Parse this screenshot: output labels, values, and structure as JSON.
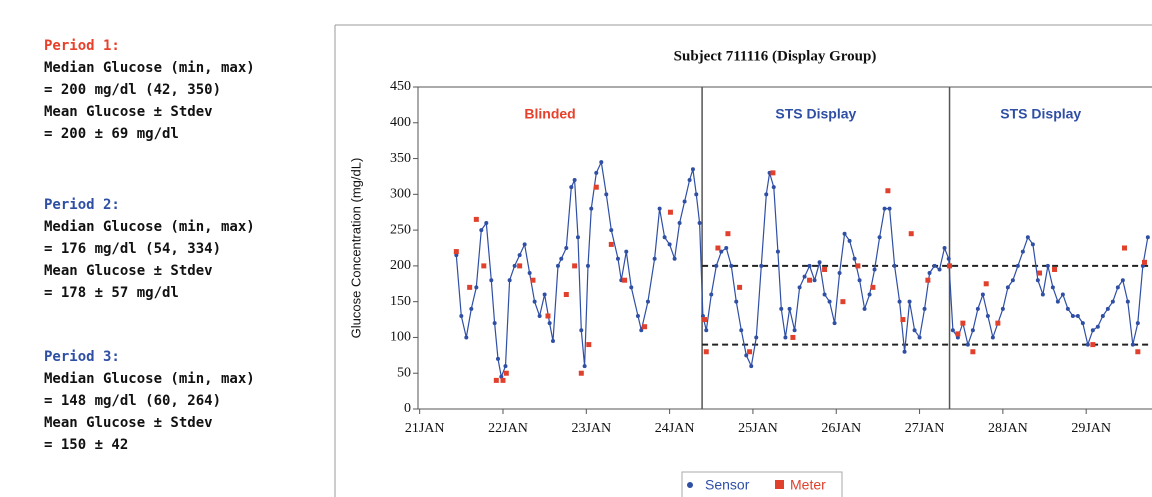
{
  "summary": [
    {
      "label": "Period 1:",
      "color": "#e8402a",
      "lines": [
        "Median Glucose (min, max)",
        "= 200 mg/dl (42, 350)",
        "Mean Glucose ± Stdev",
        "= 200 ± 69 mg/dl"
      ]
    },
    {
      "label": "Period 2:",
      "color": "#2f4fa5",
      "lines": [
        "Median Glucose (min, max)",
        "= 176 mg/dl (54, 334)",
        "Mean Glucose ± Stdev",
        "= 178 ± 57 mg/dl"
      ]
    },
    {
      "label": "Period 3:",
      "color": "#2f4fa5",
      "lines": [
        "Median Glucose (min, max)",
        "= 148 mg/dl (60, 264)",
        "Mean Glucose ± Stdev",
        "= 150 ± 42"
      ]
    }
  ],
  "chart_data": {
    "type": "scatter",
    "title": "Subject 711116 (Display Group)",
    "y_label": "Glucose Concentration (mg/dL)",
    "xlim": [
      -0.02,
      8.79
    ],
    "ylim": [
      0,
      450
    ],
    "xticks": [
      {
        "value": 0,
        "label": "21JAN"
      },
      {
        "value": 1,
        "label": "22JAN"
      },
      {
        "value": 2,
        "label": "23JAN"
      },
      {
        "value": 3,
        "label": "24JAN"
      },
      {
        "value": 4,
        "label": "25JAN"
      },
      {
        "value": 5,
        "label": "26JAN"
      },
      {
        "value": 6,
        "label": "27JAN"
      },
      {
        "value": 7,
        "label": "28JAN"
      },
      {
        "value": 8,
        "label": "29JAN"
      }
    ],
    "yticks": [
      0,
      50,
      100,
      150,
      200,
      250,
      300,
      350,
      400,
      450
    ],
    "period_boundaries": [
      3.39,
      6.36
    ],
    "regions": [
      {
        "label": "Blinded",
        "color": "#e8402a"
      },
      {
        "label": "STS Display",
        "color": "#2f4fa5"
      },
      {
        "label": "STS Display",
        "color": "#2f4fa5"
      }
    ],
    "reference_lines": [
      200,
      90
    ],
    "series": [
      {
        "name": "Sensor",
        "color": "#2f4fa5",
        "x": [
          0.44,
          0.5,
          0.56,
          0.62,
          0.68,
          0.74,
          0.8,
          0.86,
          0.9,
          0.94,
          0.98,
          1.03,
          1.08,
          1.14,
          1.2,
          1.26,
          1.32,
          1.38,
          1.44,
          1.5,
          1.56,
          1.6,
          1.66,
          1.7,
          1.76,
          1.82,
          1.86,
          1.9,
          1.94,
          1.98,
          2.02,
          2.06,
          2.12,
          2.18,
          2.24,
          2.3,
          2.38,
          2.42,
          2.48,
          2.54,
          2.62,
          2.66,
          2.74,
          2.82,
          2.88,
          2.94,
          3.0,
          3.06,
          3.12,
          3.18,
          3.24,
          3.28,
          3.32,
          3.36,
          3.4,
          3.44,
          3.5,
          3.56,
          3.62,
          3.68,
          3.74,
          3.8,
          3.86,
          3.92,
          3.98,
          4.04,
          4.1,
          4.16,
          4.2,
          4.25,
          4.3,
          4.34,
          4.39,
          4.44,
          4.5,
          4.56,
          4.62,
          4.68,
          4.74,
          4.8,
          4.86,
          4.92,
          4.98,
          5.04,
          5.1,
          5.16,
          5.22,
          5.28,
          5.34,
          5.4,
          5.46,
          5.52,
          5.58,
          5.64,
          5.7,
          5.76,
          5.82,
          5.88,
          5.94,
          6.0,
          6.06,
          6.12,
          6.18,
          6.24,
          6.3,
          6.35,
          6.4,
          6.46,
          6.52,
          6.58,
          6.64,
          6.7,
          6.76,
          6.82,
          6.88,
          6.94,
          7.0,
          7.06,
          7.12,
          7.18,
          7.24,
          7.3,
          7.36,
          7.42,
          7.48,
          7.54,
          7.6,
          7.66,
          7.72,
          7.78,
          7.84,
          7.9,
          7.96,
          8.02,
          8.08,
          8.14,
          8.2,
          8.26,
          8.32,
          8.38,
          8.44,
          8.5,
          8.56,
          8.62,
          8.68,
          8.74
        ],
        "values": [
          215,
          130,
          100,
          140,
          170,
          250,
          260,
          180,
          120,
          70,
          45,
          60,
          180,
          200,
          215,
          230,
          190,
          150,
          130,
          160,
          120,
          95,
          200,
          210,
          225,
          310,
          320,
          240,
          110,
          60,
          200,
          280,
          330,
          345,
          300,
          250,
          210,
          180,
          220,
          170,
          130,
          110,
          150,
          210,
          280,
          240,
          230,
          210,
          260,
          290,
          320,
          335,
          300,
          260,
          130,
          110,
          160,
          200,
          220,
          225,
          200,
          150,
          110,
          75,
          60,
          100,
          200,
          300,
          330,
          310,
          220,
          140,
          100,
          140,
          110,
          170,
          185,
          200,
          180,
          205,
          160,
          150,
          120,
          190,
          245,
          235,
          210,
          180,
          140,
          160,
          195,
          240,
          280,
          280,
          200,
          150,
          80,
          150,
          110,
          100,
          140,
          190,
          200,
          195,
          225,
          210,
          110,
          100,
          120,
          90,
          110,
          140,
          160,
          130,
          100,
          120,
          140,
          170,
          180,
          200,
          220,
          240,
          230,
          180,
          160,
          200,
          170,
          150,
          160,
          140,
          130,
          130,
          120,
          90,
          110,
          115,
          130,
          140,
          150,
          170,
          180,
          150,
          90,
          120,
          200,
          240
        ]
      },
      {
        "name": "Meter",
        "color": "#e0402c",
        "x": [
          0.44,
          0.6,
          0.68,
          0.77,
          0.92,
          1.0,
          1.04,
          1.2,
          1.36,
          1.54,
          1.76,
          1.86,
          1.94,
          2.03,
          2.12,
          2.3,
          2.46,
          2.7,
          3.01,
          3.42,
          3.44,
          3.58,
          3.7,
          3.84,
          3.96,
          4.24,
          4.48,
          4.68,
          4.86,
          5.08,
          5.26,
          5.44,
          5.62,
          5.8,
          5.9,
          6.1,
          6.36,
          6.46,
          6.52,
          6.64,
          6.8,
          6.94,
          7.44,
          7.62,
          8.08,
          8.46,
          8.62,
          8.7
        ],
        "values": [
          220,
          170,
          265,
          200,
          40,
          40,
          50,
          200,
          180,
          130,
          160,
          200,
          50,
          90,
          310,
          230,
          180,
          115,
          275,
          125,
          80,
          225,
          245,
          170,
          80,
          330,
          100,
          180,
          195,
          150,
          200,
          170,
          305,
          125,
          245,
          180,
          200,
          105,
          120,
          80,
          175,
          120,
          190,
          195,
          90,
          225,
          80,
          205
        ]
      }
    ]
  }
}
